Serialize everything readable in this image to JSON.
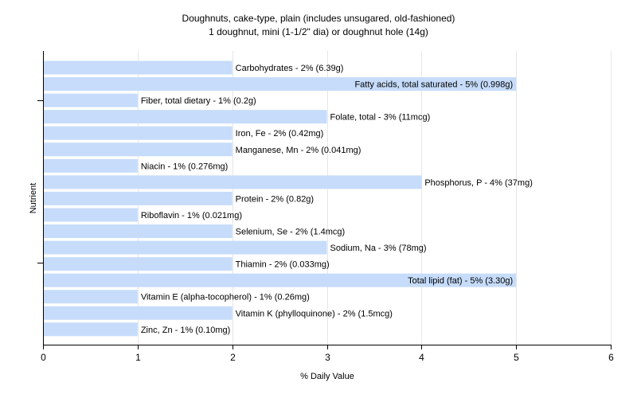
{
  "chart_data": {
    "type": "bar",
    "orientation": "horizontal",
    "title": "Doughnuts, cake-type, plain (includes unsugared, old-fashioned)",
    "subtitle": "1 doughnut, mini (1-1/2\" dia) or doughnut hole (14g)",
    "xlabel": "% Daily Value",
    "ylabel": "Nutrient",
    "xlim": [
      0,
      6
    ],
    "xticks": [
      0,
      1,
      2,
      3,
      4,
      5,
      6
    ],
    "grid": "vertical",
    "bar_color": "#c6dcfa",
    "categories": [
      "Carbohydrates",
      "Fatty acids, total saturated",
      "Fiber, total dietary",
      "Folate, total",
      "Iron, Fe",
      "Manganese, Mn",
      "Niacin",
      "Phosphorus, P",
      "Protein",
      "Riboflavin",
      "Selenium, Se",
      "Sodium, Na",
      "Thiamin",
      "Total lipid (fat)",
      "Vitamin E (alpha-tocopherol)",
      "Vitamin K (phylloquinone)",
      "Zinc, Zn"
    ],
    "values": [
      2,
      5,
      1,
      3,
      2,
      2,
      1,
      4,
      2,
      1,
      2,
      3,
      2,
      5,
      1,
      2,
      1
    ],
    "labels": [
      "Carbohydrates - 2% (6.39g)",
      "Fatty acids, total saturated - 5% (0.998g)",
      "Fiber, total dietary - 1% (0.2g)",
      "Folate, total - 3% (11mcg)",
      "Iron, Fe - 2% (0.42mg)",
      "Manganese, Mn - 2% (0.041mg)",
      "Niacin - 1% (0.276mg)",
      "Phosphorus, P - 4% (37mg)",
      "Protein - 2% (0.82g)",
      "Riboflavin - 1% (0.021mg)",
      "Selenium, Se - 2% (1.4mcg)",
      "Sodium, Na - 3% (78mg)",
      "Thiamin - 2% (0.033mg)",
      "Total lipid (fat) - 5% (3.30g)",
      "Vitamin E (alpha-tocopherol) - 1% (0.26mg)",
      "Vitamin K (phylloquinone) - 2% (1.5mcg)",
      "Zinc, Zn - 1% (0.10mg)"
    ],
    "label_inside_end": [
      false,
      true,
      false,
      false,
      false,
      false,
      false,
      false,
      false,
      false,
      false,
      false,
      false,
      true,
      false,
      false,
      false
    ]
  }
}
